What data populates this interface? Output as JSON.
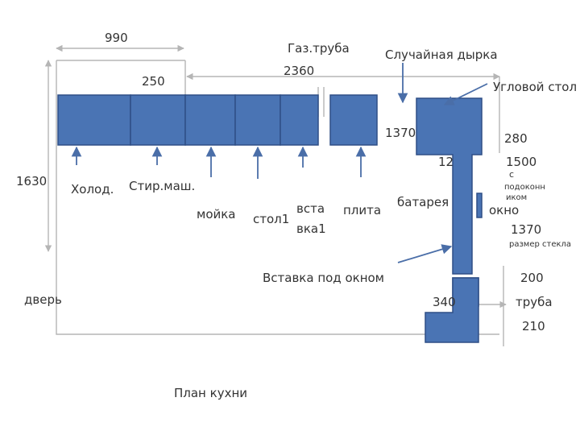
{
  "plan": {
    "title": "План кухни",
    "dims": {
      "d990": "990",
      "d250": "250",
      "d2360": "2360",
      "d1630": "1630",
      "d1370a": "1370",
      "d12": "12",
      "d280": "280",
      "d1500": "1500",
      "d1370b": "1370",
      "d200": "200",
      "d340": "340",
      "d210": "210"
    },
    "labels": {
      "gas_pipe": "Газ.труба",
      "random_hole": "Случайная дырка",
      "corner_table": "Угловой стол",
      "fridge": "Холод.",
      "washer": "Стир.маш.",
      "sink": "мойка",
      "table1": "стол1",
      "insert1_line1": "вста",
      "insert1_line2": "вка1",
      "stove": "плита",
      "radiator": "батарея",
      "sill_line1": "с",
      "sill_line2": "подоконн",
      "sill_line3": "иком",
      "window": "окно",
      "glass_size": "размер стекла",
      "window_insert": "Вставка под окном",
      "door": "дверь",
      "pipe": "труба"
    },
    "colors": {
      "block_fill": "#4a74b4",
      "block_stroke": "#2f4f86",
      "arrow": "#4a6ea8",
      "line": "#b5b5b5",
      "text": "#333333"
    }
  }
}
